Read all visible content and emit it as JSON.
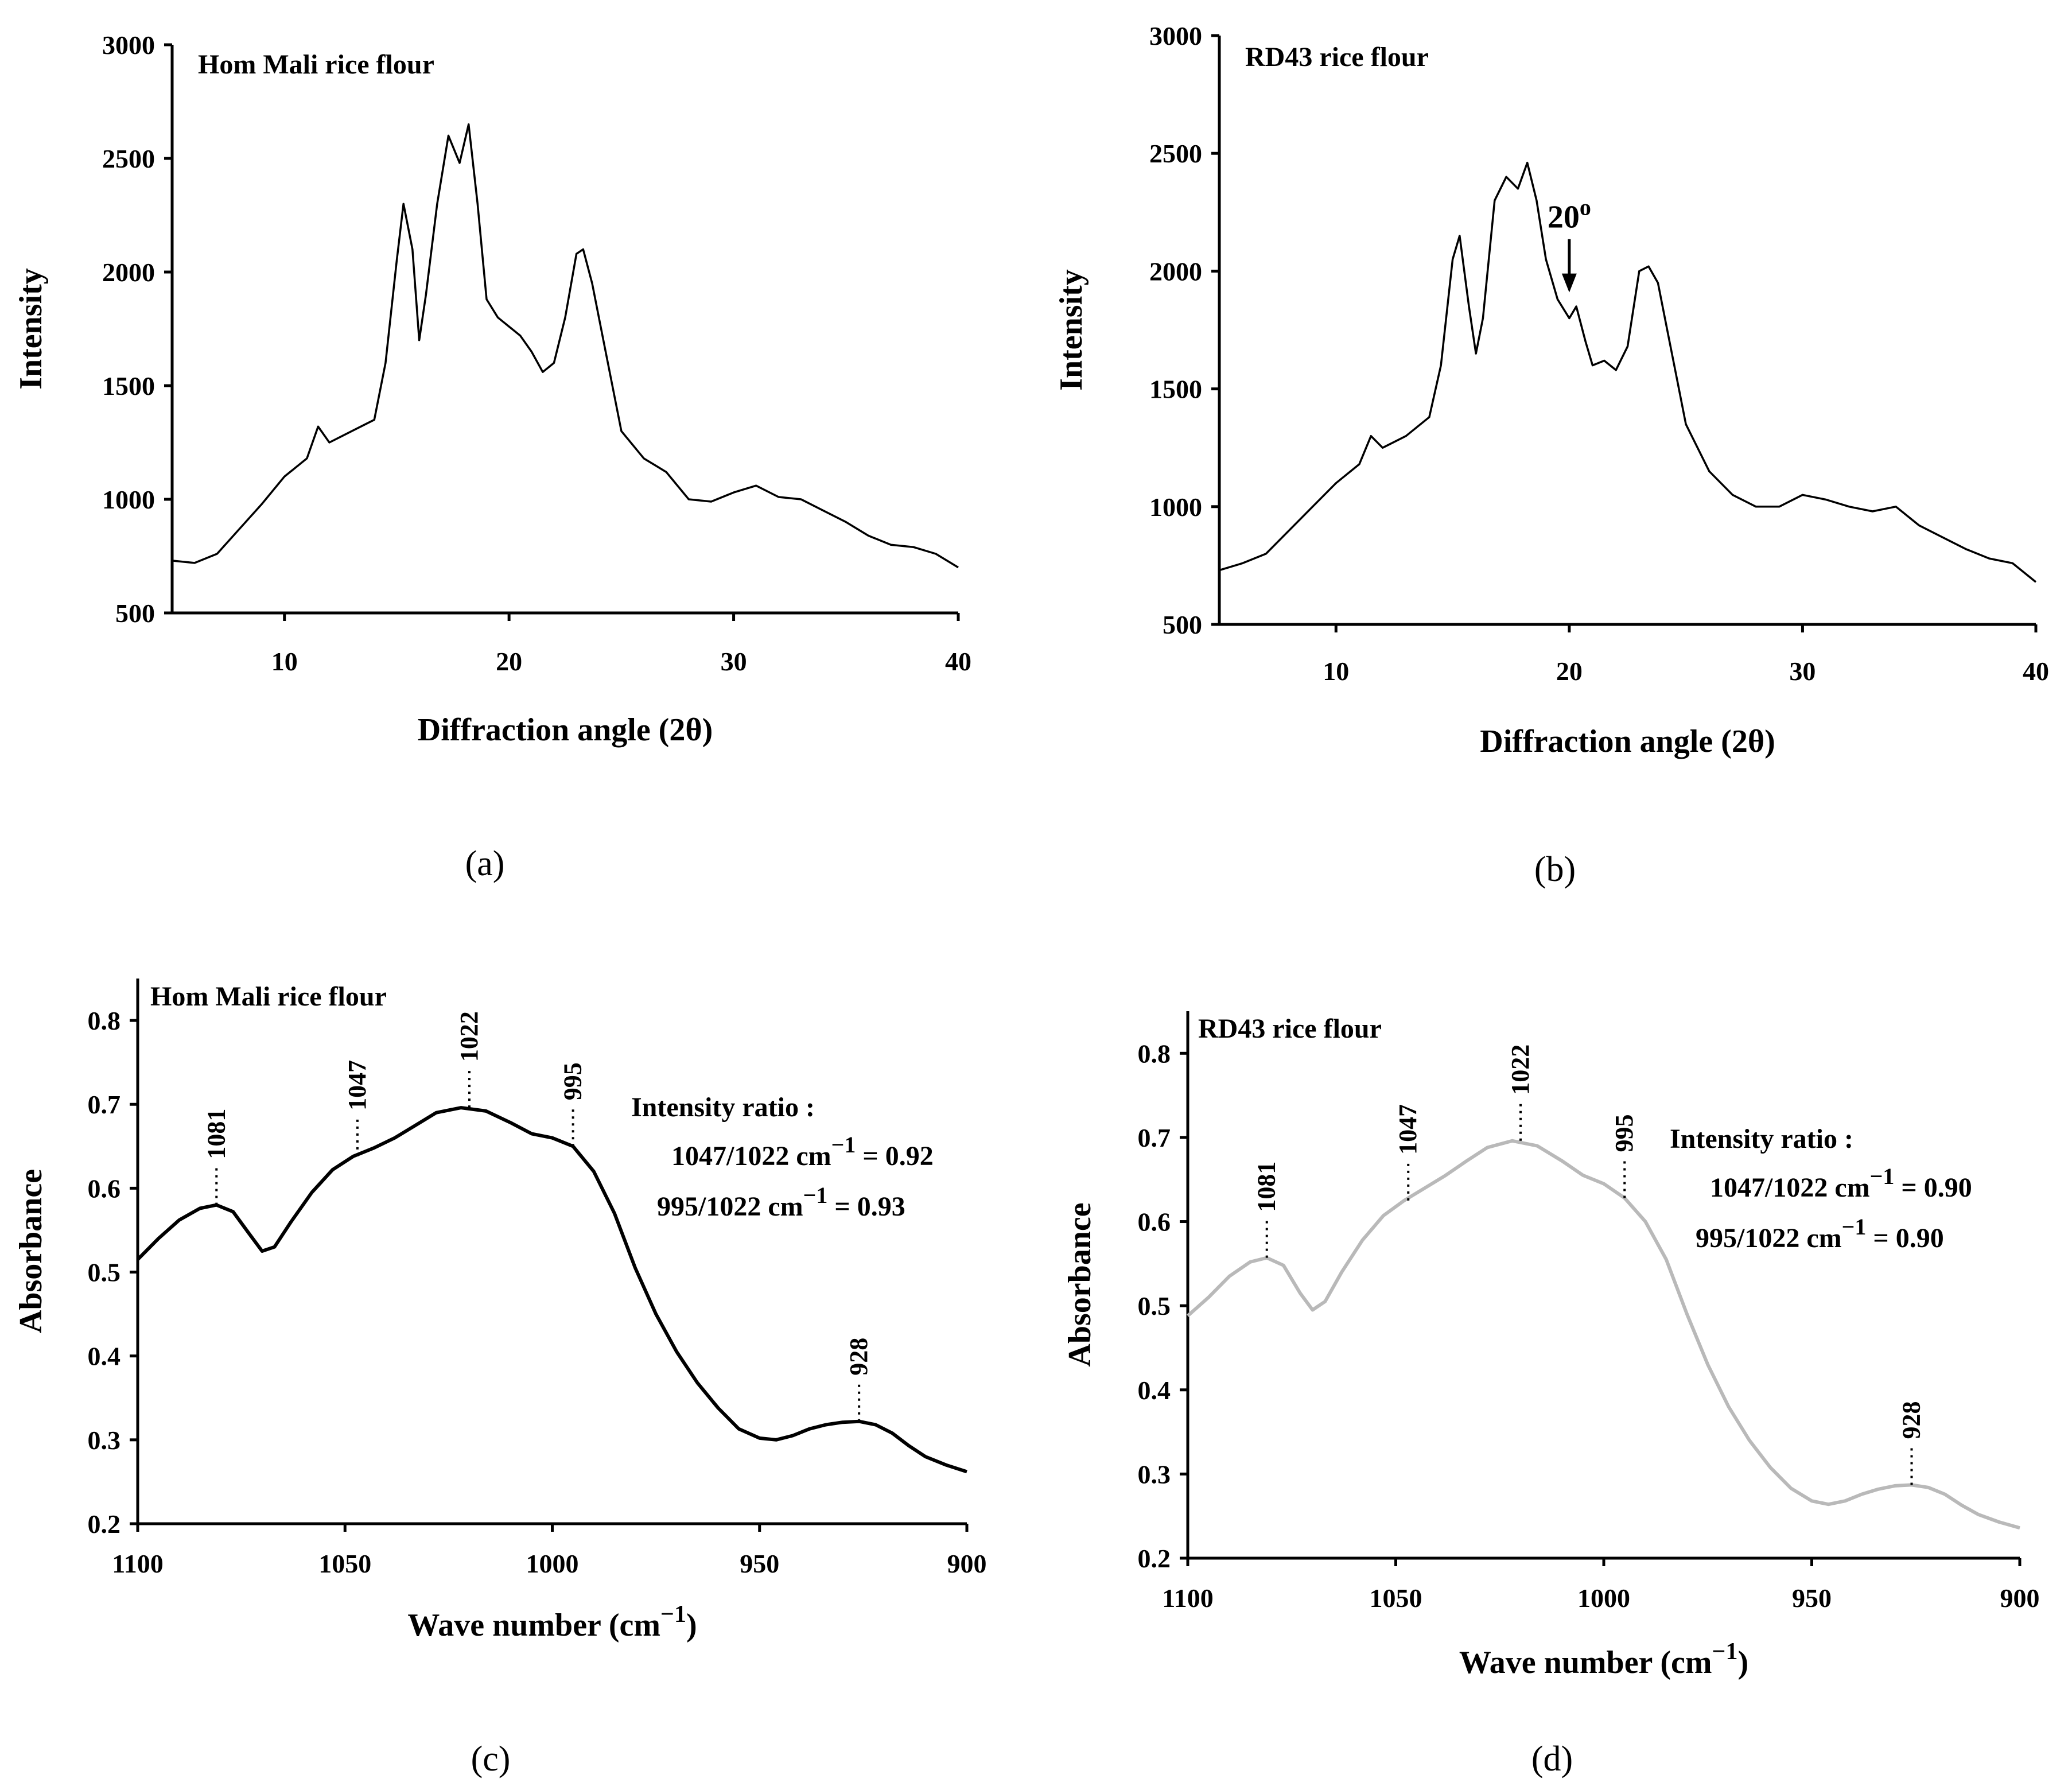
{
  "chart_data": [
    {
      "id": "a",
      "type": "line",
      "title": "Hom Mali rice flour",
      "xlabel": "Diffraction angle (2θ)",
      "ylabel": "Intensity",
      "xlim": [
        5,
        40
      ],
      "ylim": [
        500,
        3000
      ],
      "xticks": [
        10,
        20,
        30,
        40
      ],
      "yticks": [
        500,
        1000,
        1500,
        2000,
        2500,
        3000
      ],
      "sublabel": "(a)",
      "color": "#000000",
      "series": [
        {
          "name": "Hom Mali rice flour",
          "x": [
            5,
            6,
            7,
            8,
            9,
            10,
            11,
            11.5,
            12,
            13,
            14,
            14.5,
            15,
            15.3,
            15.7,
            16,
            16.3,
            16.8,
            17.3,
            17.8,
            18.2,
            18.6,
            19,
            19.5,
            20,
            20.5,
            21,
            21.5,
            22,
            22.5,
            23,
            23.3,
            23.7,
            24,
            24.5,
            25,
            26,
            27,
            28,
            29,
            30,
            31,
            32,
            33,
            34,
            35,
            36,
            37,
            38,
            39,
            40
          ],
          "values": [
            730,
            720,
            760,
            870,
            980,
            1100,
            1180,
            1320,
            1250,
            1300,
            1350,
            1600,
            2050,
            2300,
            2100,
            1700,
            1900,
            2300,
            2600,
            2480,
            2650,
            2300,
            1880,
            1800,
            1760,
            1720,
            1650,
            1560,
            1600,
            1800,
            2080,
            2100,
            1950,
            1800,
            1550,
            1300,
            1180,
            1120,
            1000,
            990,
            1030,
            1060,
            1010,
            1000,
            950,
            900,
            840,
            800,
            790,
            760,
            700
          ]
        }
      ]
    },
    {
      "id": "b",
      "type": "line",
      "title": "RD43 rice flour",
      "xlabel": "Diffraction angle (2θ)",
      "ylabel": "Intensity",
      "xlim": [
        5,
        40
      ],
      "ylim": [
        500,
        3000
      ],
      "xticks": [
        10,
        20,
        30,
        40
      ],
      "yticks": [
        500,
        1000,
        1500,
        2000,
        2500,
        3000
      ],
      "sublabel": "(b)",
      "color": "#000000",
      "annotation": {
        "text": "20",
        "superscript": "o",
        "x": 20,
        "y": 1880
      },
      "series": [
        {
          "name": "RD43 rice flour",
          "x": [
            5,
            6,
            7,
            8,
            9,
            10,
            11,
            11.5,
            12,
            13,
            14,
            14.5,
            15,
            15.3,
            15.7,
            16,
            16.3,
            16.8,
            17.3,
            17.8,
            18.2,
            18.6,
            19,
            19.5,
            20,
            20.3,
            20.7,
            21,
            21.5,
            22,
            22.5,
            23,
            23.4,
            23.8,
            24.2,
            24.6,
            25,
            26,
            27,
            28,
            29,
            30,
            31,
            32,
            33,
            34,
            35,
            36,
            37,
            38,
            39,
            40
          ],
          "values": [
            730,
            760,
            800,
            900,
            1000,
            1100,
            1180,
            1300,
            1250,
            1300,
            1380,
            1600,
            2050,
            2150,
            1850,
            1650,
            1800,
            2300,
            2400,
            2350,
            2460,
            2300,
            2050,
            1880,
            1800,
            1850,
            1700,
            1600,
            1620,
            1580,
            1680,
            2000,
            2020,
            1950,
            1750,
            1550,
            1350,
            1150,
            1050,
            1000,
            1000,
            1050,
            1030,
            1000,
            980,
            1000,
            920,
            870,
            820,
            780,
            760,
            680
          ]
        }
      ]
    },
    {
      "id": "c",
      "type": "line",
      "title": "Hom Mali rice flour",
      "xlabel": "Wave number (cm",
      "xlabel_sup": "−1",
      "xlabel_end": ")",
      "ylabel": "Absorbance",
      "xlim": [
        1100,
        900
      ],
      "ylim": [
        0.2,
        0.85
      ],
      "xticks": [
        1100,
        1050,
        1000,
        950,
        900
      ],
      "yticks": [
        0.2,
        0.3,
        0.4,
        0.5,
        0.6,
        0.7,
        0.8
      ],
      "ytick_labels": [
        "0.2",
        "0.3",
        "0.4",
        "0.5",
        "0.6",
        "0.7",
        "0.8"
      ],
      "sublabel": "(c)",
      "color": "#000000",
      "peaks": [
        {
          "label": "1081",
          "x": 1081,
          "y": 0.58
        },
        {
          "label": "1047",
          "x": 1047,
          "y": 0.638
        },
        {
          "label": "1022",
          "x": 1020,
          "y": 0.696
        },
        {
          "label": "995",
          "x": 995,
          "y": 0.65
        },
        {
          "label": "928",
          "x": 926,
          "y": 0.322
        }
      ],
      "ratio_title": "Intensity ratio :",
      "ratios": [
        {
          "label": "1047/1022 cm",
          "sup": "−1",
          "value": " = 0.92"
        },
        {
          "label": "995/1022 cm",
          "sup": "−1",
          "value": " = 0.93"
        }
      ],
      "series": [
        {
          "name": "Hom Mali rice flour",
          "x": [
            1100,
            1095,
            1090,
            1085,
            1081,
            1077,
            1073,
            1070,
            1067,
            1063,
            1058,
            1053,
            1048,
            1043,
            1038,
            1033,
            1028,
            1022,
            1016,
            1010,
            1005,
            1000,
            995,
            990,
            985,
            980,
            975,
            970,
            965,
            960,
            955,
            950,
            946,
            942,
            938,
            934,
            930,
            926,
            922,
            918,
            914,
            910,
            905,
            900
          ],
          "values": [
            0.515,
            0.54,
            0.562,
            0.576,
            0.58,
            0.572,
            0.545,
            0.525,
            0.53,
            0.56,
            0.595,
            0.622,
            0.638,
            0.648,
            0.66,
            0.675,
            0.69,
            0.696,
            0.692,
            0.678,
            0.665,
            0.66,
            0.65,
            0.62,
            0.57,
            0.505,
            0.45,
            0.405,
            0.368,
            0.338,
            0.313,
            0.302,
            0.3,
            0.305,
            0.313,
            0.318,
            0.321,
            0.322,
            0.318,
            0.308,
            0.293,
            0.28,
            0.27,
            0.262
          ]
        }
      ]
    },
    {
      "id": "d",
      "type": "line",
      "title": "RD43 rice flour",
      "xlabel": "Wave number (cm",
      "xlabel_sup": "−1",
      "xlabel_end": ")",
      "ylabel": "Absorbance",
      "xlim": [
        1100,
        900
      ],
      "ylim": [
        0.2,
        0.85
      ],
      "xticks": [
        1100,
        1050,
        1000,
        950,
        900
      ],
      "yticks": [
        0.2,
        0.3,
        0.4,
        0.5,
        0.6,
        0.7,
        0.8
      ],
      "ytick_labels": [
        "0.2",
        "0.3",
        "0.4",
        "0.5",
        "0.6",
        "0.7",
        "0.8"
      ],
      "sublabel": "(d)",
      "color": "#b9b9b9",
      "peaks": [
        {
          "label": "1081",
          "x": 1081,
          "y": 0.557
        },
        {
          "label": "1047",
          "x": 1047,
          "y": 0.625
        },
        {
          "label": "1022",
          "x": 1020,
          "y": 0.696
        },
        {
          "label": "995",
          "x": 995,
          "y": 0.628
        },
        {
          "label": "928",
          "x": 926,
          "y": 0.287
        }
      ],
      "ratio_title": "Intensity ratio :",
      "ratios": [
        {
          "label": "1047/1022 cm",
          "sup": "−1",
          "value": " = 0.90"
        },
        {
          "label": "995/1022 cm",
          "sup": "−1",
          "value": " = 0.90"
        }
      ],
      "series": [
        {
          "name": "RD43 rice flour",
          "x": [
            1100,
            1095,
            1090,
            1085,
            1081,
            1077,
            1073,
            1070,
            1067,
            1063,
            1058,
            1053,
            1048,
            1043,
            1038,
            1033,
            1028,
            1022,
            1016,
            1010,
            1005,
            1000,
            995,
            990,
            985,
            980,
            975,
            970,
            965,
            960,
            955,
            950,
            946,
            942,
            938,
            934,
            930,
            926,
            922,
            918,
            914,
            910,
            905,
            900
          ],
          "values": [
            0.488,
            0.51,
            0.535,
            0.552,
            0.557,
            0.548,
            0.515,
            0.495,
            0.505,
            0.54,
            0.578,
            0.607,
            0.625,
            0.64,
            0.655,
            0.672,
            0.688,
            0.696,
            0.69,
            0.672,
            0.655,
            0.645,
            0.628,
            0.6,
            0.555,
            0.49,
            0.43,
            0.38,
            0.34,
            0.308,
            0.283,
            0.268,
            0.264,
            0.268,
            0.276,
            0.282,
            0.286,
            0.287,
            0.284,
            0.276,
            0.263,
            0.252,
            0.243,
            0.236
          ]
        }
      ]
    }
  ]
}
